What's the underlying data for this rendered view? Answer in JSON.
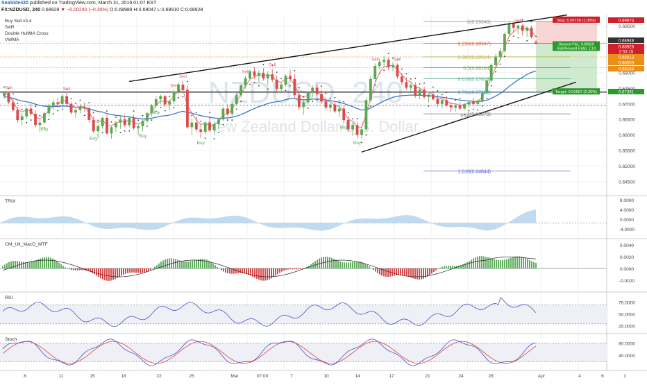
{
  "header": {
    "publisher": "SeaSide420",
    "published_text": "published on TradingView.com, March 31, 2016 01:07 EST",
    "symbol": "FX:NZDUSD, 240",
    "last": "0.68928",
    "change": "▼ −0.00240 (−0.35%)",
    "ohlc": "O:0.68989 H:0.69047 L:0.68910 C:0.68928"
  },
  "indicators": [
    "Buy Sell v3.4",
    "SAR",
    "Double HullMA Cross",
    "VWMA"
  ],
  "watermark": {
    "symbol": "NZDUSD, 240",
    "name": "New Zealand Dollar/U.S. Dollar"
  },
  "colors": {
    "background": "#ffffff",
    "grid": "#eef0f3",
    "up_candle": "#5aa84f",
    "down_candle": "#d94c4c",
    "sar": "#333333",
    "hull": "#e06666",
    "vwma": "#3a78c8",
    "trix_fill": "#b9d6ee",
    "macd_up": "#3c9a3c",
    "macd_down": "#d02020",
    "rsi": "#4a50c8",
    "stoch_k": "#4a50c8",
    "stoch_d": "#e04040",
    "stop_zone": "#f9d6d6",
    "target_zone": "#cfeacf",
    "watermark": "#dde3ea"
  },
  "panes": {
    "trix": "TRIX",
    "macd": "CM_Ult_MacD_MTF",
    "rsi": "RSI",
    "stoch": "Stoch"
  },
  "fib_labels": [
    {
      "label": "0(0.69648)",
      "level": 0.69648
    },
    {
      "label": "0.236(0.68947)",
      "level": 0.68947
    },
    {
      "label": "0.382(0.68514)",
      "level": 0.68514
    },
    {
      "label": "0.5(0.68164)",
      "level": 0.68164
    },
    {
      "label": "0.618(0.67813)",
      "level": 0.67813
    },
    {
      "label": "0.764(0.67380)",
      "level": 0.6738
    },
    {
      "label": "1(0.66679)",
      "level": 0.66679
    },
    {
      "label": "1.618(0.64844)",
      "level": 0.64844
    }
  ],
  "trade_boxes": {
    "stop": "Stop: 0.00726 (1.05%)",
    "opened": "Opened P&L: 0.00020",
    "rr": "Risk/Reward Ratio: 2.14",
    "target": "Target: 0.01557 (2.26%)"
  },
  "signals": {
    "sell": [
      {
        "label": "Sell"
      },
      {
        "label": "Sell"
      },
      {
        "label": "Sell"
      },
      {
        "label": "Sell"
      },
      {
        "label": "Sell"
      },
      {
        "label": "Sell"
      },
      {
        "label": "Sell"
      },
      {
        "label": "Sell"
      },
      {
        "label": "Sell"
      }
    ],
    "buy": [
      {
        "label": "Buy"
      },
      {
        "label": "Buy"
      },
      {
        "label": "Buy"
      },
      {
        "label": "Buy"
      },
      {
        "label": "Buy"
      },
      {
        "label": "Buy"
      },
      {
        "label": "Buy"
      },
      {
        "label": "Buy"
      }
    ]
  },
  "price_axis": {
    "ticks": [
      "0.69500",
      "0.69000",
      "0.68500",
      "0.68000",
      "0.67500",
      "0.67000",
      "0.66500",
      "0.66000",
      "0.65500",
      "0.65000",
      "0.64500"
    ],
    "badges": [
      {
        "text": "0.69674",
        "color": "#d0202a"
      },
      {
        "text": "0.68948",
        "color": "#333333"
      },
      {
        "text": "0.68928",
        "color": "#d0202a"
      },
      {
        "text": "2:53:15",
        "color": "#d0202a"
      },
      {
        "text": "0.68813",
        "color": "#e8901a"
      },
      {
        "text": "0.68503",
        "color": "#e8901a"
      },
      {
        "text": "0.68164",
        "color": "#e8901a"
      },
      {
        "text": "0.67391",
        "color": "#2a9a2a"
      }
    ]
  },
  "trix_axis": [
    "8.0000",
    "4.0000",
    "0.0000",
    "-4.0000"
  ],
  "macd_axis": [
    "0.0040",
    "0.0020",
    "0.0000",
    "-0.0020"
  ],
  "rsi_axis": [
    "75.0000",
    "50.0000",
    "25.0000"
  ],
  "stoch_axis": [
    "80.0000",
    "40.0000"
  ],
  "time_axis": [
    "8",
    "11",
    "15",
    "18",
    "22",
    "25",
    "Mar",
    "07:00",
    "7",
    "10",
    "14",
    "17",
    "21",
    "24",
    "28",
    "Apr",
    "4",
    "6",
    "1"
  ],
  "chart_data": {
    "type": "candlestick",
    "symbol": "FX:NZDUSD",
    "interval": "240",
    "ylim": [
      0.6405,
      0.6985
    ],
    "candles": [
      [
        0.6725,
        0.6742,
        0.6715,
        0.6735
      ],
      [
        0.6735,
        0.6738,
        0.67,
        0.6705
      ],
      [
        0.6705,
        0.672,
        0.6675,
        0.668
      ],
      [
        0.668,
        0.669,
        0.664,
        0.6648
      ],
      [
        0.6648,
        0.667,
        0.663,
        0.666
      ],
      [
        0.666,
        0.669,
        0.6652,
        0.6685
      ],
      [
        0.6685,
        0.67,
        0.666,
        0.6668
      ],
      [
        0.6668,
        0.668,
        0.6625,
        0.6632
      ],
      [
        0.6632,
        0.665,
        0.661,
        0.664
      ],
      [
        0.664,
        0.6675,
        0.6635,
        0.667
      ],
      [
        0.667,
        0.67,
        0.6662,
        0.6695
      ],
      [
        0.6695,
        0.6715,
        0.668,
        0.6705
      ],
      [
        0.6705,
        0.672,
        0.669,
        0.67
      ],
      [
        0.67,
        0.673,
        0.6695,
        0.6725
      ],
      [
        0.6725,
        0.6735,
        0.6695,
        0.67
      ],
      [
        0.67,
        0.6705,
        0.6665,
        0.6672
      ],
      [
        0.6672,
        0.669,
        0.6655,
        0.668
      ],
      [
        0.668,
        0.67,
        0.667,
        0.669
      ],
      [
        0.669,
        0.6705,
        0.6675,
        0.6685
      ],
      [
        0.6685,
        0.6692,
        0.664,
        0.6648
      ],
      [
        0.6648,
        0.666,
        0.6605,
        0.6612
      ],
      [
        0.6612,
        0.6635,
        0.659,
        0.6628
      ],
      [
        0.6628,
        0.666,
        0.662,
        0.6655
      ],
      [
        0.6655,
        0.6665,
        0.66,
        0.6605
      ],
      [
        0.6605,
        0.663,
        0.6588,
        0.6625
      ],
      [
        0.6625,
        0.6645,
        0.661,
        0.664
      ],
      [
        0.664,
        0.666,
        0.662,
        0.665
      ],
      [
        0.665,
        0.6665,
        0.6625,
        0.6632
      ],
      [
        0.6632,
        0.666,
        0.6625,
        0.6655
      ],
      [
        0.6655,
        0.6665,
        0.6615,
        0.6622
      ],
      [
        0.6622,
        0.6635,
        0.66,
        0.6628
      ],
      [
        0.6628,
        0.665,
        0.6612,
        0.6645
      ],
      [
        0.6645,
        0.6675,
        0.664,
        0.667
      ],
      [
        0.667,
        0.67,
        0.666,
        0.6695
      ],
      [
        0.6695,
        0.6725,
        0.6688,
        0.6715
      ],
      [
        0.6715,
        0.673,
        0.67,
        0.6725
      ],
      [
        0.6725,
        0.6728,
        0.669,
        0.6698
      ],
      [
        0.6698,
        0.6712,
        0.668,
        0.6708
      ],
      [
        0.6708,
        0.6745,
        0.67,
        0.674
      ],
      [
        0.674,
        0.677,
        0.6732,
        0.6762
      ],
      [
        0.6762,
        0.6775,
        0.6735,
        0.6745
      ],
      [
        0.6745,
        0.676,
        0.662,
        0.6625
      ],
      [
        0.6625,
        0.665,
        0.66,
        0.664
      ],
      [
        0.664,
        0.666,
        0.661,
        0.6618
      ],
      [
        0.6618,
        0.6632,
        0.659,
        0.661
      ],
      [
        0.661,
        0.6645,
        0.6602,
        0.664
      ],
      [
        0.664,
        0.666,
        0.661,
        0.6615
      ],
      [
        0.6615,
        0.664,
        0.66,
        0.6635
      ],
      [
        0.6635,
        0.6655,
        0.662,
        0.665
      ],
      [
        0.665,
        0.669,
        0.6645,
        0.6685
      ],
      [
        0.6685,
        0.67,
        0.666,
        0.6668
      ],
      [
        0.6668,
        0.6705,
        0.666,
        0.67
      ],
      [
        0.67,
        0.6735,
        0.6695,
        0.6728
      ],
      [
        0.6728,
        0.6765,
        0.672,
        0.676
      ],
      [
        0.676,
        0.679,
        0.675,
        0.6782
      ],
      [
        0.6782,
        0.681,
        0.6775,
        0.6805
      ],
      [
        0.6805,
        0.6818,
        0.678,
        0.679
      ],
      [
        0.679,
        0.6808,
        0.677,
        0.68
      ],
      [
        0.68,
        0.6815,
        0.6775,
        0.6782
      ],
      [
        0.6782,
        0.6805,
        0.676,
        0.6795
      ],
      [
        0.6795,
        0.6812,
        0.677,
        0.6778
      ],
      [
        0.6778,
        0.679,
        0.674,
        0.6748
      ],
      [
        0.6748,
        0.677,
        0.6735,
        0.6762
      ],
      [
        0.6762,
        0.6795,
        0.6755,
        0.679
      ],
      [
        0.679,
        0.681,
        0.677,
        0.678
      ],
      [
        0.678,
        0.6795,
        0.672,
        0.6728
      ],
      [
        0.6728,
        0.674,
        0.668,
        0.669
      ],
      [
        0.669,
        0.6712,
        0.6665,
        0.6705
      ],
      [
        0.6705,
        0.674,
        0.6698,
        0.6735
      ],
      [
        0.6735,
        0.676,
        0.672,
        0.6752
      ],
      [
        0.6752,
        0.6765,
        0.6725,
        0.6732
      ],
      [
        0.6732,
        0.6745,
        0.67,
        0.6708
      ],
      [
        0.6708,
        0.6722,
        0.668,
        0.6688
      ],
      [
        0.6688,
        0.6705,
        0.6672,
        0.6698
      ],
      [
        0.6698,
        0.6708,
        0.667,
        0.6676
      ],
      [
        0.6676,
        0.6692,
        0.6658,
        0.6685
      ],
      [
        0.6685,
        0.6695,
        0.664,
        0.6648
      ],
      [
        0.6648,
        0.666,
        0.661,
        0.6618
      ],
      [
        0.6618,
        0.664,
        0.6598,
        0.6632
      ],
      [
        0.6632,
        0.664,
        0.659,
        0.66
      ],
      [
        0.66,
        0.6625,
        0.6588,
        0.6618
      ],
      [
        0.6618,
        0.672,
        0.6612,
        0.6712
      ],
      [
        0.6712,
        0.679,
        0.6705,
        0.678
      ],
      [
        0.678,
        0.683,
        0.6772,
        0.6822
      ],
      [
        0.6822,
        0.6845,
        0.681,
        0.6835
      ],
      [
        0.6835,
        0.6855,
        0.682,
        0.6842
      ],
      [
        0.6842,
        0.685,
        0.681,
        0.6818
      ],
      [
        0.6818,
        0.6835,
        0.6805,
        0.6825
      ],
      [
        0.6825,
        0.683,
        0.678,
        0.6788
      ],
      [
        0.6788,
        0.68,
        0.676,
        0.677
      ],
      [
        0.677,
        0.6785,
        0.6745,
        0.6752
      ],
      [
        0.6752,
        0.6768,
        0.6735,
        0.676
      ],
      [
        0.676,
        0.677,
        0.672,
        0.6728
      ],
      [
        0.6728,
        0.6752,
        0.6715,
        0.6745
      ],
      [
        0.6745,
        0.6755,
        0.6715,
        0.6722
      ],
      [
        0.6722,
        0.6735,
        0.6705,
        0.673
      ],
      [
        0.673,
        0.6742,
        0.671,
        0.6715
      ],
      [
        0.6715,
        0.673,
        0.669,
        0.67
      ],
      [
        0.67,
        0.6718,
        0.6685,
        0.6712
      ],
      [
        0.6712,
        0.6725,
        0.669,
        0.6695
      ],
      [
        0.6695,
        0.6705,
        0.6675,
        0.6688
      ],
      [
        0.6688,
        0.67,
        0.6675,
        0.6695
      ],
      [
        0.6695,
        0.6705,
        0.668,
        0.6685
      ],
      [
        0.6685,
        0.6702,
        0.6678,
        0.6698
      ],
      [
        0.6698,
        0.6712,
        0.669,
        0.6706
      ],
      [
        0.6706,
        0.672,
        0.6695,
        0.67
      ],
      [
        0.67,
        0.6715,
        0.6692,
        0.671
      ],
      [
        0.671,
        0.674,
        0.6705,
        0.6735
      ],
      [
        0.6735,
        0.678,
        0.673,
        0.6775
      ],
      [
        0.6775,
        0.683,
        0.677,
        0.6825
      ],
      [
        0.6825,
        0.686,
        0.6815,
        0.6852
      ],
      [
        0.6852,
        0.688,
        0.684,
        0.687
      ],
      [
        0.687,
        0.693,
        0.6865,
        0.6925
      ],
      [
        0.6925,
        0.6965,
        0.6915,
        0.6958
      ],
      [
        0.6958,
        0.6962,
        0.693,
        0.6945
      ],
      [
        0.6945,
        0.6955,
        0.6925,
        0.6952
      ],
      [
        0.6952,
        0.6958,
        0.692,
        0.6935
      ],
      [
        0.6935,
        0.695,
        0.6915,
        0.6945
      ],
      [
        0.6945,
        0.6952,
        0.691,
        0.6915
      ],
      [
        0.6899,
        0.6905,
        0.6891,
        0.6893
      ]
    ],
    "fib_levels": [
      0.69648,
      0.68947,
      0.68514,
      0.68164,
      0.67813,
      0.6738,
      0.66679,
      0.64844
    ],
    "horizontal_levels": [
      0.6738,
      0.6695
    ],
    "trendlines": [
      {
        "from": [
          28,
          0.6772
        ],
        "to": [
          126,
          0.6986
        ]
      },
      {
        "from": [
          80,
          0.6545
        ],
        "to": [
          128,
          0.677
        ]
      }
    ],
    "trade": {
      "entry": 0.68948,
      "stop": 0.69674,
      "target": 0.67391
    }
  }
}
